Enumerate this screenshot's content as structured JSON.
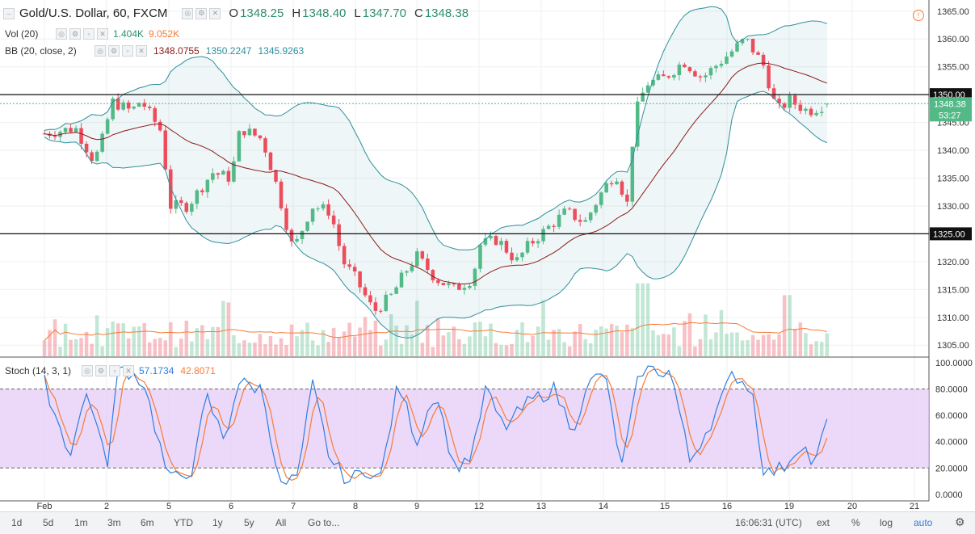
{
  "legend": {
    "title": "Gold/U.S. Dollar, 60, FXCM",
    "ohlc": {
      "o_label": "O",
      "o": "1348.25",
      "h_label": "H",
      "h": "1348.40",
      "l_label": "L",
      "l": "1347.70",
      "c_label": "C",
      "c": "1348.38"
    },
    "vol": {
      "name": "Vol (20)",
      "v1": "1.404K",
      "v2": "9.052K"
    },
    "bb": {
      "name": "BB (20, close, 2)",
      "v1": "1348.0755",
      "v2": "1350.2247",
      "v3": "1345.9263"
    },
    "stoch": {
      "name": "Stoch (14, 3, 1)",
      "v1": "57.1734",
      "v2": "42.8071"
    }
  },
  "colors": {
    "up": "#53b987",
    "down": "#eb4d5c",
    "bb_band": "#2f8f9d",
    "bb_basis": "#8b1a1a",
    "stoch_k": "#2f7ee0",
    "stoch_d": "#f57c37",
    "stoch_fill": "#e4c8f5",
    "price_tag": "#53b987"
  },
  "price_axis": {
    "ticks": [
      "1365.00",
      "1360.00",
      "1355.00",
      "1350.00",
      "1345.00",
      "1340.00",
      "1335.00",
      "1330.00",
      "1325.00",
      "1320.00",
      "1315.00",
      "1310.00",
      "1305.00"
    ],
    "tick_values": [
      1365,
      1360,
      1355,
      1350,
      1345,
      1340,
      1335,
      1330,
      1325,
      1320,
      1315,
      1310,
      1305
    ],
    "range": [
      1303,
      1367
    ],
    "hlines": [
      1350,
      1325
    ],
    "hline_labels": [
      "1350.00",
      "1325.00"
    ],
    "last_price": 1348.38,
    "last_label": "1348.38",
    "countdown": "53:27"
  },
  "stoch_axis": {
    "ticks": [
      "100.0000",
      "80.0000",
      "60.0000",
      "40.0000",
      "20.0000",
      "0.0000"
    ],
    "tick_values": [
      100,
      80,
      60,
      40,
      20,
      0
    ],
    "range": [
      -5,
      103
    ]
  },
  "time_axis": {
    "labels": [
      "Feb",
      "2",
      "5",
      "6",
      "7",
      "8",
      "9",
      "12",
      "13",
      "14",
      "15",
      "16",
      "19",
      "20",
      "21"
    ],
    "label_index": [
      0,
      1,
      2,
      3,
      4,
      5,
      6,
      7,
      8,
      9,
      10,
      11,
      12,
      13,
      14
    ]
  },
  "bottom_bar": {
    "ranges": [
      "1d",
      "5d",
      "1m",
      "3m",
      "6m",
      "YTD",
      "1y",
      "5y",
      "All"
    ],
    "goto": "Go to...",
    "time": "16:06:31 (UTC)",
    "ext": "ext",
    "pct": "%",
    "log": "log",
    "auto": "auto"
  },
  "chart_data": {
    "type": "candlestick",
    "symbol": "Gold/U.S. Dollar",
    "interval": "60",
    "ylim": [
      1303,
      1367
    ],
    "anchors": [
      {
        "day": 0,
        "price": 1343
      },
      {
        "day": 0.5,
        "price": 1344
      },
      {
        "day": 0.8,
        "price": 1338
      },
      {
        "day": 1,
        "price": 1344
      },
      {
        "day": 1.05,
        "price": 1349
      },
      {
        "day": 1.4,
        "price": 1347
      },
      {
        "day": 1.55,
        "price": 1349
      },
      {
        "day": 1.9,
        "price": 1343
      },
      {
        "day": 2.0,
        "price": 1330
      },
      {
        "day": 2.3,
        "price": 1330
      },
      {
        "day": 2.7,
        "price": 1336
      },
      {
        "day": 3.0,
        "price": 1335
      },
      {
        "day": 3.15,
        "price": 1344
      },
      {
        "day": 3.5,
        "price": 1342
      },
      {
        "day": 3.7,
        "price": 1335
      },
      {
        "day": 4.0,
        "price": 1322
      },
      {
        "day": 4.3,
        "price": 1330
      },
      {
        "day": 4.6,
        "price": 1329
      },
      {
        "day": 4.8,
        "price": 1320
      },
      {
        "day": 5.0,
        "price": 1317
      },
      {
        "day": 5.3,
        "price": 1311
      },
      {
        "day": 5.6,
        "price": 1314
      },
      {
        "day": 5.8,
        "price": 1318
      },
      {
        "day": 6.0,
        "price": 1321
      },
      {
        "day": 6.3,
        "price": 1317
      },
      {
        "day": 6.6,
        "price": 1315
      },
      {
        "day": 6.9,
        "price": 1317
      },
      {
        "day": 7.0,
        "price": 1323
      },
      {
        "day": 7.3,
        "price": 1324
      },
      {
        "day": 7.6,
        "price": 1320
      },
      {
        "day": 7.8,
        "price": 1323
      },
      {
        "day": 8.0,
        "price": 1325
      },
      {
        "day": 8.4,
        "price": 1329
      },
      {
        "day": 8.7,
        "price": 1327
      },
      {
        "day": 9.0,
        "price": 1333
      },
      {
        "day": 9.2,
        "price": 1336
      },
      {
        "day": 9.4,
        "price": 1330
      },
      {
        "day": 9.5,
        "price": 1346
      },
      {
        "day": 9.7,
        "price": 1352
      },
      {
        "day": 10.0,
        "price": 1353
      },
      {
        "day": 10.3,
        "price": 1356
      },
      {
        "day": 10.6,
        "price": 1353
      },
      {
        "day": 11.0,
        "price": 1357
      },
      {
        "day": 11.3,
        "price": 1360
      },
      {
        "day": 11.6,
        "price": 1355
      },
      {
        "day": 11.8,
        "price": 1347
      },
      {
        "day": 12.0,
        "price": 1349
      },
      {
        "day": 12.3,
        "price": 1347
      },
      {
        "day": 12.6,
        "price": 1348.38
      }
    ],
    "stoch_anchors": [
      {
        "day": 0,
        "k": 85
      },
      {
        "day": 0.4,
        "k": 30
      },
      {
        "day": 0.7,
        "k": 80
      },
      {
        "day": 1.0,
        "k": 20
      },
      {
        "day": 1.2,
        "k": 98
      },
      {
        "day": 1.6,
        "k": 85
      },
      {
        "day": 2.0,
        "k": 10
      },
      {
        "day": 2.4,
        "k": 20
      },
      {
        "day": 2.6,
        "k": 75
      },
      {
        "day": 2.9,
        "k": 40
      },
      {
        "day": 3.1,
        "k": 85
      },
      {
        "day": 3.5,
        "k": 80
      },
      {
        "day": 3.8,
        "k": 5
      },
      {
        "day": 4.1,
        "k": 15
      },
      {
        "day": 4.3,
        "k": 85
      },
      {
        "day": 4.6,
        "k": 25
      },
      {
        "day": 4.9,
        "k": 10
      },
      {
        "day": 5.2,
        "k": 20
      },
      {
        "day": 5.4,
        "k": 10
      },
      {
        "day": 5.7,
        "k": 85
      },
      {
        "day": 6.0,
        "k": 40
      },
      {
        "day": 6.3,
        "k": 80
      },
      {
        "day": 6.6,
        "k": 20
      },
      {
        "day": 6.9,
        "k": 30
      },
      {
        "day": 7.1,
        "k": 80
      },
      {
        "day": 7.4,
        "k": 50
      },
      {
        "day": 7.8,
        "k": 70
      },
      {
        "day": 8.2,
        "k": 80
      },
      {
        "day": 8.5,
        "k": 50
      },
      {
        "day": 8.8,
        "k": 85
      },
      {
        "day": 9.0,
        "k": 95
      },
      {
        "day": 9.3,
        "k": 20
      },
      {
        "day": 9.6,
        "k": 95
      },
      {
        "day": 10.1,
        "k": 93
      },
      {
        "day": 10.4,
        "k": 25
      },
      {
        "day": 10.8,
        "k": 60
      },
      {
        "day": 11.1,
        "k": 92
      },
      {
        "day": 11.4,
        "k": 80
      },
      {
        "day": 11.6,
        "k": 15
      },
      {
        "day": 11.9,
        "k": 20
      },
      {
        "day": 12.2,
        "k": 40
      },
      {
        "day": 12.4,
        "k": 20
      },
      {
        "day": 12.6,
        "k": 57
      }
    ],
    "last": {
      "open": 1348.25,
      "high": 1348.4,
      "low": 1347.7,
      "close": 1348.38
    },
    "bb_last": {
      "basis": 1348.0755,
      "upper": 1350.2247,
      "lower": 1345.9263
    },
    "stoch_last": {
      "k": 57.1734,
      "d": 42.8071
    },
    "vol_last": {
      "v": "1.404K",
      "ma": "9.052K"
    }
  }
}
